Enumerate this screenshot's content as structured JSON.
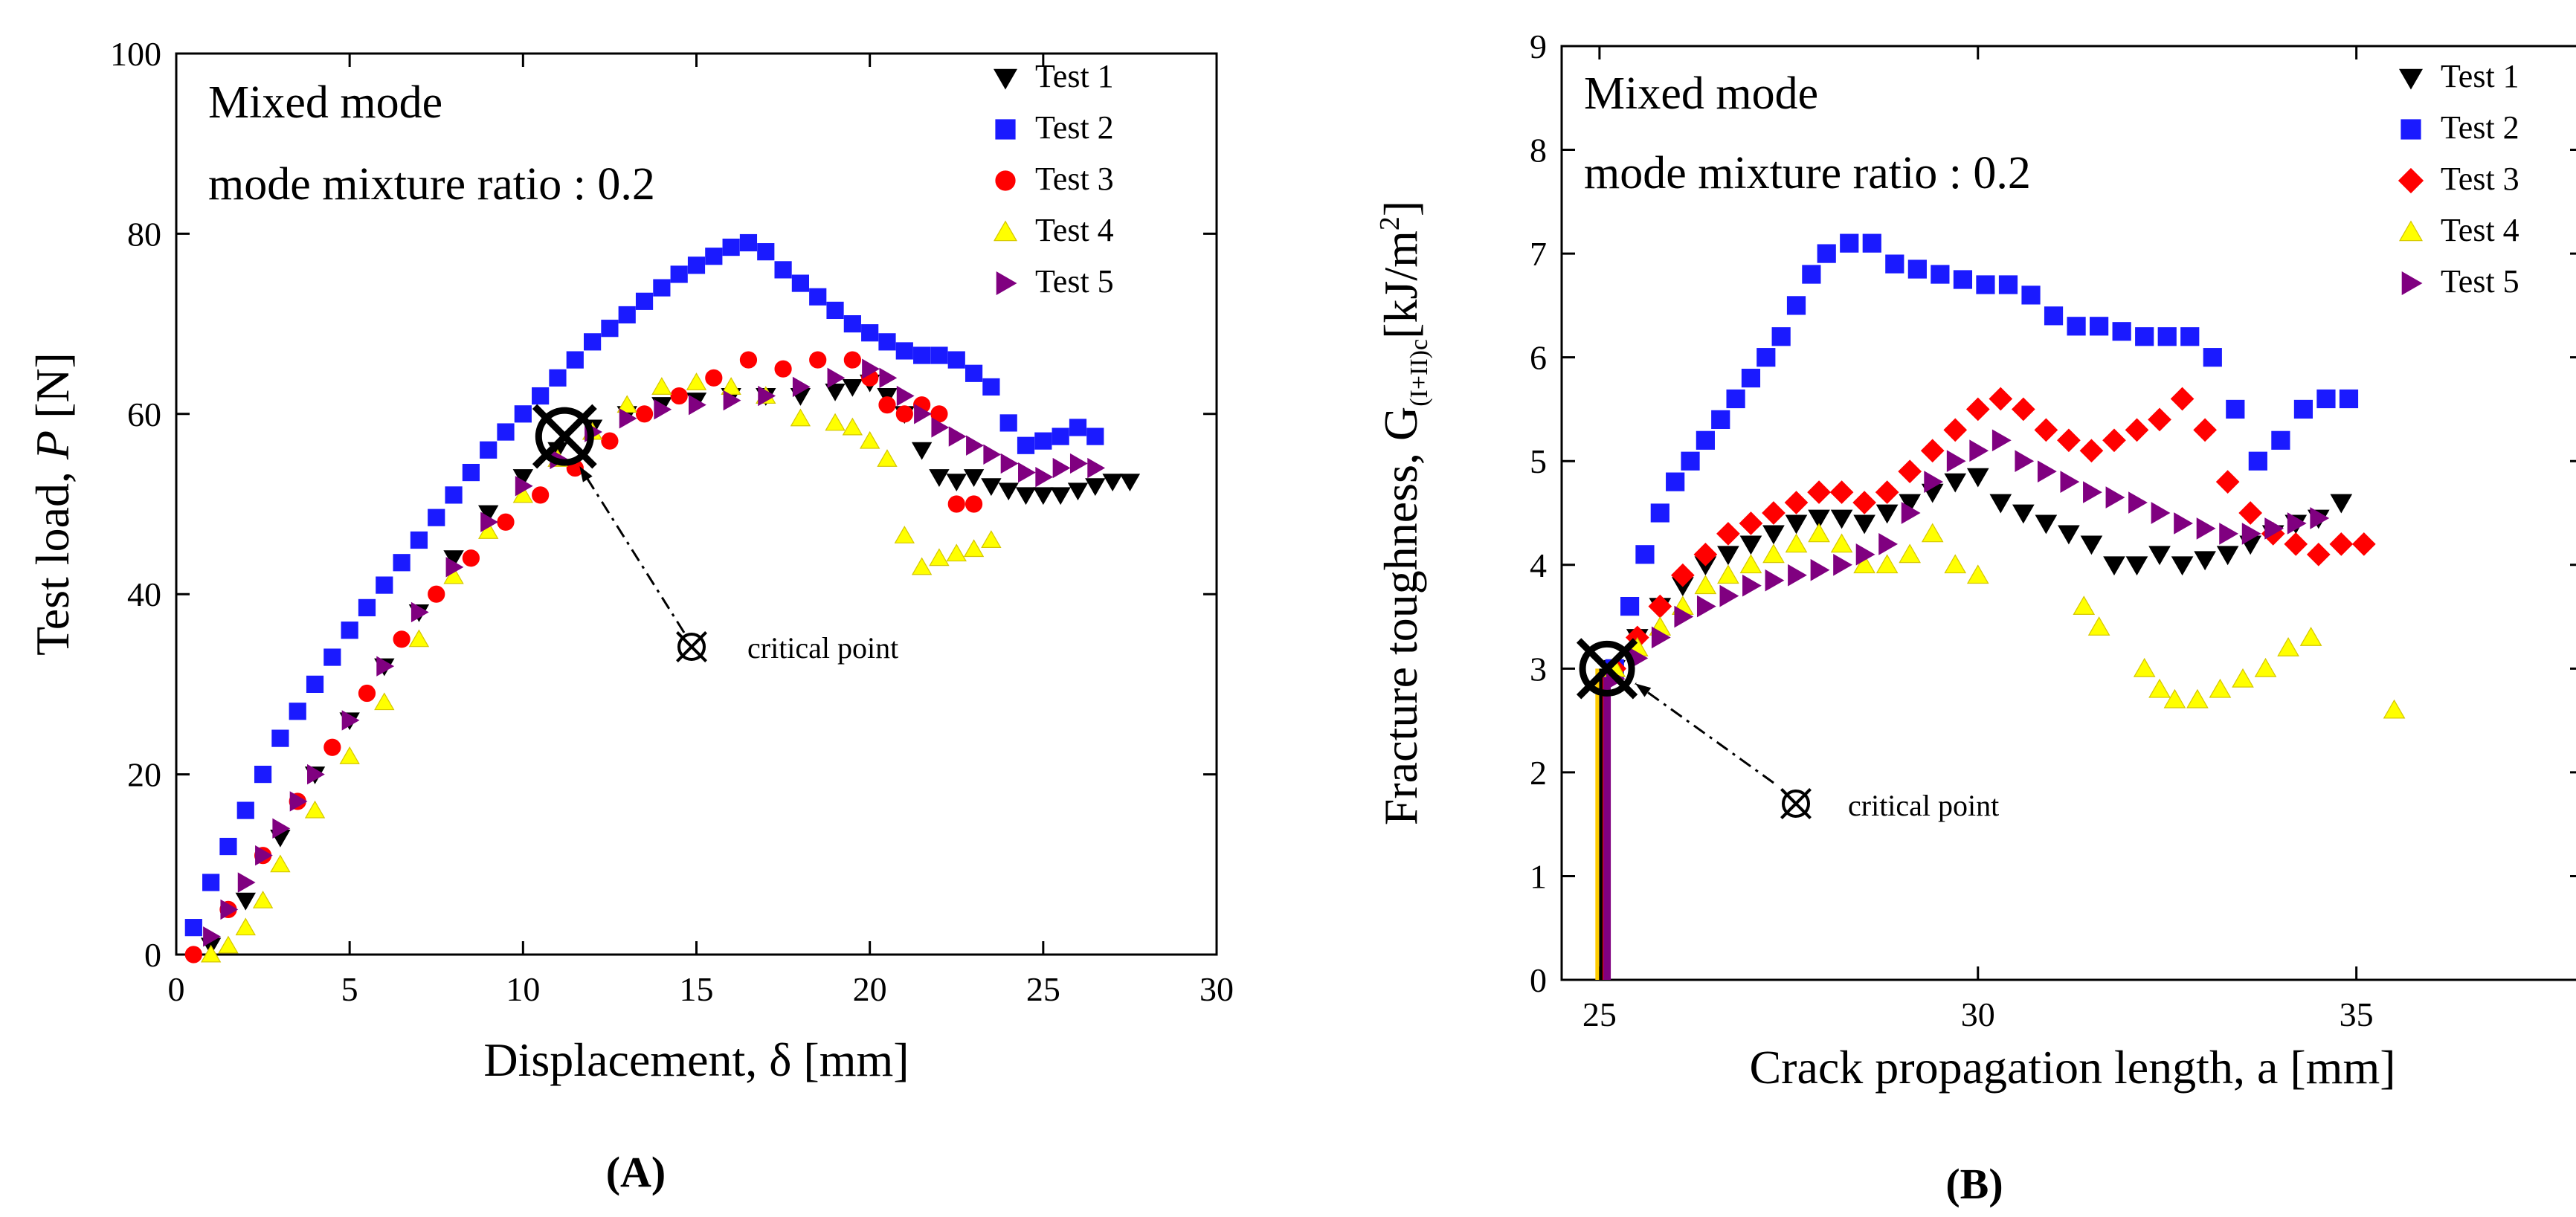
{
  "series_style": {
    "Test 1": {
      "color": "#000000",
      "marker": "triangle-down"
    },
    "Test 2": {
      "color": "#1a1aff",
      "marker": "square"
    },
    "Test 3": {
      "color": "#ff0000",
      "marker_a": "circle",
      "marker_b": "diamond"
    },
    "Test 4": {
      "color": "#ffff00",
      "marker": "triangle-up"
    },
    "Test 5": {
      "color": "#800080",
      "marker": "triangle-right"
    }
  },
  "critical_marker_icon": "circled-x-icon",
  "chart_data": [
    {
      "type": "scatter",
      "panel_label": "(A)",
      "xlabel": "Displacement, δ [mm]",
      "ylabel_prefix": "Test load, ",
      "ylabel_var": "P",
      "ylabel_suffix": " [N]",
      "xlim": [
        0,
        30
      ],
      "ylim": [
        0,
        100
      ],
      "xticks": [
        0,
        5,
        10,
        15,
        20,
        25,
        30
      ],
      "yticks": [
        0,
        20,
        40,
        60,
        80,
        100
      ],
      "grid": false,
      "legend_position": "top-right",
      "annotation_line1": "Mixed mode",
      "annotation_line2": "mode mixture ratio : 0.2",
      "critical_point_label": "critical point",
      "critical_point": [
        11.2,
        57.5
      ],
      "series": [
        {
          "name": "Test 1",
          "x": [
            1.0,
            2.0,
            3.0,
            4.0,
            5.0,
            6.0,
            7.0,
            8.0,
            9.0,
            10.0,
            11.0,
            12.0,
            13.0,
            14.0,
            15.0,
            16.0,
            17.0,
            18.0,
            19.0,
            19.5,
            20.0,
            20.5,
            21.0,
            21.5,
            22.0,
            22.5,
            23.0,
            23.5,
            24.0,
            24.5,
            25.0,
            25.5,
            26.0,
            26.5,
            27.0,
            27.5
          ],
          "y": [
            1,
            6,
            13,
            20,
            26,
            32,
            38,
            44,
            49,
            53,
            56,
            58.5,
            60,
            61,
            61.5,
            62,
            62,
            62,
            62.5,
            63,
            63.5,
            62,
            60,
            56,
            53,
            52.5,
            53,
            52,
            51.5,
            51,
            51,
            51,
            51.5,
            52,
            52.5,
            52.5
          ]
        },
        {
          "name": "Test 2",
          "x": [
            0.5,
            1.0,
            1.5,
            2.0,
            2.5,
            3.0,
            3.5,
            4.0,
            4.5,
            5.0,
            5.5,
            6.0,
            6.5,
            7.0,
            7.5,
            8.0,
            8.5,
            9.0,
            9.5,
            10.0,
            10.5,
            11.0,
            11.5,
            12.0,
            12.5,
            13.0,
            13.5,
            14.0,
            14.5,
            15.0,
            15.5,
            16.0,
            16.5,
            17.0,
            17.5,
            18.0,
            18.5,
            19.0,
            19.5,
            20.0,
            20.5,
            21.0,
            21.5,
            22.0,
            22.5,
            23.0,
            23.5,
            24.0,
            24.5,
            25.0,
            25.5,
            26.0,
            26.5
          ],
          "y": [
            3,
            8,
            12,
            16,
            20,
            24,
            27,
            30,
            33,
            36,
            38.5,
            41,
            43.5,
            46,
            48.5,
            51,
            53.5,
            56,
            58,
            60,
            62,
            64,
            66,
            68,
            69.5,
            71,
            72.5,
            74,
            75.5,
            76.5,
            77.5,
            78.5,
            79,
            78,
            76,
            74.5,
            73,
            71.5,
            70,
            69,
            68,
            67,
            66.5,
            66.5,
            66,
            64.5,
            63,
            59,
            56.5,
            57,
            57.5,
            58.5,
            57.5
          ]
        },
        {
          "name": "Test 3",
          "x": [
            0.5,
            1.5,
            2.5,
            3.5,
            4.5,
            5.5,
            6.5,
            7.5,
            8.5,
            9.5,
            10.5,
            11.5,
            12.5,
            13.5,
            14.5,
            15.5,
            16.5,
            17.5,
            18.5,
            19.5,
            20.0,
            20.5,
            21.0,
            21.5,
            22.0,
            22.5,
            23.0
          ],
          "y": [
            0,
            5,
            11,
            17,
            23,
            29,
            35,
            40,
            44,
            48,
            51,
            54,
            57,
            60,
            62,
            64,
            66,
            65,
            66,
            66,
            64,
            61,
            60,
            61,
            60,
            50,
            50
          ]
        },
        {
          "name": "Test 4",
          "x": [
            1.0,
            1.5,
            2.0,
            2.5,
            3.0,
            4.0,
            5.0,
            6.0,
            7.0,
            8.0,
            9.0,
            10.0,
            11.0,
            12.0,
            13.0,
            14.0,
            15.0,
            16.0,
            17.0,
            18.0,
            19.0,
            19.5,
            20.0,
            20.5,
            21.0,
            21.5,
            22.0,
            22.5,
            23.0,
            23.5
          ],
          "y": [
            0,
            1,
            3,
            6,
            10,
            16,
            22,
            28,
            35,
            42,
            47,
            51,
            55,
            58,
            61,
            63,
            63.5,
            63,
            62,
            59.5,
            59,
            58.5,
            57,
            55,
            46.5,
            43,
            44,
            44.5,
            45,
            46
          ]
        },
        {
          "name": "Test 5",
          "x": [
            1.0,
            1.5,
            2.0,
            2.5,
            3.0,
            3.5,
            4.0,
            5.0,
            6.0,
            7.0,
            8.0,
            9.0,
            10.0,
            11.0,
            12.0,
            13.0,
            14.0,
            15.0,
            16.0,
            17.0,
            18.0,
            19.0,
            20.0,
            20.5,
            21.0,
            21.5,
            22.0,
            22.5,
            23.0,
            23.5,
            24.0,
            24.5,
            25.0,
            25.5,
            26.0,
            26.5
          ],
          "y": [
            2,
            5,
            8,
            11,
            14,
            17,
            20,
            26,
            32,
            38,
            43,
            48,
            52,
            55,
            58,
            59.5,
            60.5,
            61,
            61.5,
            62,
            63,
            64,
            65,
            64,
            62,
            60,
            58.5,
            57.5,
            56.5,
            55.5,
            54.5,
            53.5,
            53,
            54,
            54.5,
            54
          ]
        }
      ]
    },
    {
      "type": "scatter",
      "panel_label": "(B)",
      "xlabel": "Crack propagation length, a [mm]",
      "ylabel_prefix": "Fracture toughness, G",
      "ylabel_sub": "(I+II)c",
      "ylabel_unit": "[kJ/m",
      "ylabel_sup": "2",
      "ylabel_close": "]",
      "xlim": [
        24.5,
        38
      ],
      "ylim": [
        0,
        9
      ],
      "xticks": [
        25,
        30,
        35
      ],
      "yticks": [
        0,
        1,
        2,
        3,
        4,
        5,
        6,
        7,
        8,
        9
      ],
      "grid": false,
      "legend_position": "top-right",
      "annotation_line1": "Mixed mode",
      "annotation_line2": "mode mixture ratio : 0.2",
      "critical_point_label": "critical point",
      "critical_point": [
        25.1,
        3.0
      ],
      "series": [
        {
          "name": "Test 1",
          "x": [
            25.2,
            25.5,
            25.8,
            26.1,
            26.4,
            26.7,
            27.0,
            27.3,
            27.6,
            27.9,
            28.2,
            28.5,
            28.8,
            29.1,
            29.4,
            29.7,
            30.0,
            30.3,
            30.6,
            30.9,
            31.2,
            31.5,
            31.8,
            32.1,
            32.4,
            32.7,
            33.0,
            33.3,
            33.6,
            33.9,
            34.2,
            34.5,
            34.8
          ],
          "y": [
            3.0,
            3.3,
            3.6,
            3.8,
            4.0,
            4.1,
            4.2,
            4.3,
            4.4,
            4.45,
            4.45,
            4.4,
            4.5,
            4.6,
            4.7,
            4.8,
            4.85,
            4.6,
            4.5,
            4.4,
            4.3,
            4.2,
            4.0,
            4.0,
            4.1,
            4.0,
            4.05,
            4.1,
            4.2,
            4.3,
            4.4,
            4.45,
            4.6
          ]
        },
        {
          "name": "Test 2",
          "x": [
            25.2,
            25.4,
            25.6,
            25.8,
            26.0,
            26.2,
            26.4,
            26.6,
            26.8,
            27.0,
            27.2,
            27.4,
            27.6,
            27.8,
            28.0,
            28.3,
            28.6,
            28.9,
            29.2,
            29.5,
            29.8,
            30.1,
            30.4,
            30.7,
            31.0,
            31.3,
            31.6,
            31.9,
            32.2,
            32.5,
            32.8,
            33.1,
            33.4,
            33.7,
            34.0,
            34.3,
            34.6,
            34.9
          ],
          "y": [
            3.0,
            3.6,
            4.1,
            4.5,
            4.8,
            5.0,
            5.2,
            5.4,
            5.6,
            5.8,
            6.0,
            6.2,
            6.5,
            6.8,
            7.0,
            7.1,
            7.1,
            6.9,
            6.85,
            6.8,
            6.75,
            6.7,
            6.7,
            6.6,
            6.4,
            6.3,
            6.3,
            6.25,
            6.2,
            6.2,
            6.2,
            6.0,
            5.5,
            5.0,
            5.2,
            5.5,
            5.6,
            5.6
          ]
        },
        {
          "name": "Test 3",
          "x": [
            25.2,
            25.5,
            25.8,
            26.1,
            26.4,
            26.7,
            27.0,
            27.3,
            27.6,
            27.9,
            28.2,
            28.5,
            28.8,
            29.1,
            29.4,
            29.7,
            30.0,
            30.3,
            30.6,
            30.9,
            31.2,
            31.5,
            31.8,
            32.1,
            32.4,
            32.7,
            33.0,
            33.3,
            33.6,
            33.9,
            34.2,
            34.5,
            34.8,
            35.1
          ],
          "y": [
            3.0,
            3.3,
            3.6,
            3.9,
            4.1,
            4.3,
            4.4,
            4.5,
            4.6,
            4.7,
            4.7,
            4.6,
            4.7,
            4.9,
            5.1,
            5.3,
            5.5,
            5.6,
            5.5,
            5.3,
            5.2,
            5.1,
            5.2,
            5.3,
            5.4,
            5.6,
            5.3,
            4.8,
            4.5,
            4.3,
            4.2,
            4.1,
            4.2,
            4.2
          ]
        },
        {
          "name": "Test 4",
          "x": [
            25.2,
            25.5,
            25.8,
            26.1,
            26.4,
            26.7,
            27.0,
            27.3,
            27.6,
            27.9,
            28.2,
            28.5,
            28.8,
            29.1,
            29.4,
            29.7,
            30.0,
            31.4,
            31.6,
            32.2,
            32.4,
            32.6,
            32.9,
            33.2,
            33.5,
            33.8,
            34.1,
            34.4,
            35.5
          ],
          "y": [
            3.0,
            3.2,
            3.4,
            3.6,
            3.8,
            3.9,
            4.0,
            4.1,
            4.2,
            4.3,
            4.2,
            4.0,
            4.0,
            4.1,
            4.3,
            4.0,
            3.9,
            3.6,
            3.4,
            3.0,
            2.8,
            2.7,
            2.7,
            2.8,
            2.9,
            3.0,
            3.2,
            3.3,
            2.6
          ]
        },
        {
          "name": "Test 5",
          "x": [
            25.2,
            25.5,
            25.8,
            26.1,
            26.4,
            26.7,
            27.0,
            27.3,
            27.6,
            27.9,
            28.2,
            28.5,
            28.8,
            29.1,
            29.4,
            29.7,
            30.0,
            30.3,
            30.6,
            30.9,
            31.2,
            31.5,
            31.8,
            32.1,
            32.4,
            32.7,
            33.0,
            33.3,
            33.6,
            33.9,
            34.2,
            34.5
          ],
          "y": [
            2.9,
            3.1,
            3.3,
            3.5,
            3.6,
            3.7,
            3.8,
            3.85,
            3.9,
            3.95,
            4.0,
            4.1,
            4.2,
            4.5,
            4.8,
            5.0,
            5.1,
            5.2,
            5.0,
            4.9,
            4.8,
            4.7,
            4.65,
            4.6,
            4.5,
            4.4,
            4.35,
            4.3,
            4.3,
            4.35,
            4.4,
            4.45
          ]
        }
      ]
    }
  ]
}
